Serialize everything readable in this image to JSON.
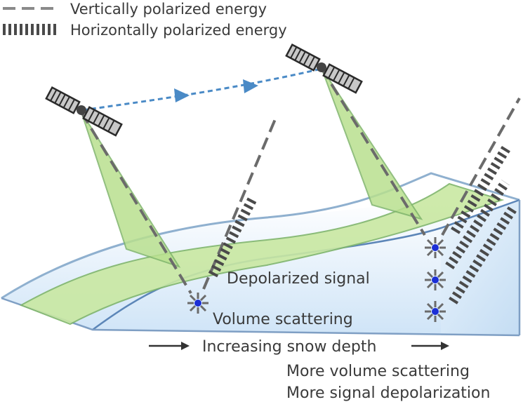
{
  "legend": {
    "vertical_label": "Vertically polarized energy",
    "horizontal_label": "Horizontally polarized energy"
  },
  "labels": {
    "depolarized": "Depolarized signal",
    "volume": "Volume scattering",
    "increasing": "Increasing snow depth",
    "more_volume": "More volume scattering",
    "more_depol": "More signal depolarization"
  },
  "colors": {
    "line_gray": "#6b6b6b",
    "beam_green": "#c9e8a2",
    "beam_edge": "#7fb56b",
    "snow_edge": "#7f9fc4",
    "track_blue": "#4a8ac6",
    "scatter_blue": "#1c2fd6"
  }
}
